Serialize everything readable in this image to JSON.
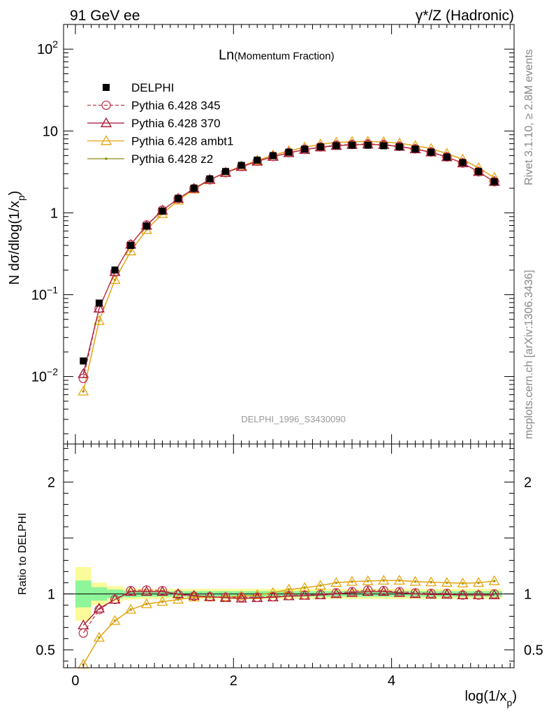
{
  "header": {
    "left": "91 GeV ee",
    "right_prefix": "γ*/Z",
    "right_suffix": "(Hadronic)"
  },
  "side_labels": {
    "rivet": "Rivet 3.1.10, ≥ 2.8M events",
    "mcplots": "mcplots.cern.ch [arXiv:1306.3436]"
  },
  "plot_title_main": "Ln",
  "plot_title_sub": "(Momentum Fraction)",
  "analysis_id": "DELPHI_1996_S3430090",
  "chart_data": [
    {
      "type": "scatter",
      "ylabel": "N dσ/dlog(1/x_p)",
      "ylabel_text": "N dσ/dlog(1/x",
      "ylabel_sub": "p",
      "ylabel_close": ")",
      "yscale": "log",
      "ylim": [
        0.0015,
        200
      ],
      "xlim": [
        -0.15,
        5.55
      ],
      "x": [
        0.1,
        0.3,
        0.5,
        0.7,
        0.9,
        1.1,
        1.3,
        1.5,
        1.7,
        1.9,
        2.1,
        2.3,
        2.5,
        2.7,
        2.9,
        3.1,
        3.3,
        3.5,
        3.7,
        3.9,
        4.1,
        4.3,
        4.5,
        4.7,
        4.9,
        5.1,
        5.3
      ],
      "y_tick_labels": [
        "10^-2",
        "10^-1",
        "1",
        "10",
        "10^2"
      ],
      "legend_position": "top-left",
      "series": [
        {
          "name": "DELPHI",
          "color": "#000000",
          "marker": "square",
          "values": [
            0.0155,
            0.079,
            0.2,
            0.4,
            0.69,
            1.05,
            1.5,
            2.0,
            2.6,
            3.2,
            3.8,
            4.4,
            5.0,
            5.5,
            6.0,
            6.4,
            6.6,
            6.7,
            6.7,
            6.6,
            6.4,
            6.0,
            5.5,
            4.8,
            4.1,
            3.2,
            2.4
          ]
        },
        {
          "name": "Pythia 6.428 345",
          "color": "#c0394f",
          "marker": "circle-open",
          "line": "dashed",
          "values": [
            0.0095,
            0.068,
            0.19,
            0.41,
            0.71,
            1.08,
            1.49,
            1.98,
            2.54,
            3.1,
            3.68,
            4.27,
            4.88,
            5.43,
            5.95,
            6.37,
            6.7,
            6.84,
            6.93,
            6.82,
            6.49,
            6.05,
            5.53,
            4.82,
            4.06,
            3.17,
            2.4
          ]
        },
        {
          "name": "Pythia 6.428 370",
          "color": "#a50f2d",
          "marker": "triangle-open",
          "line": "solid",
          "values": [
            0.0108,
            0.068,
            0.19,
            0.41,
            0.7,
            1.07,
            1.49,
            1.98,
            2.55,
            3.09,
            3.65,
            4.24,
            4.85,
            5.39,
            5.9,
            6.33,
            6.61,
            6.78,
            6.86,
            6.76,
            6.45,
            6.0,
            5.5,
            4.8,
            4.05,
            3.17,
            2.4
          ]
        },
        {
          "name": "Pythia 6.428 ambt1",
          "color": "#e8a510",
          "marker": "triangle-open",
          "line": "solid",
          "values": [
            0.0066,
            0.048,
            0.152,
            0.34,
            0.62,
            0.97,
            1.42,
            1.94,
            2.52,
            3.12,
            3.72,
            4.35,
            5.06,
            5.72,
            6.33,
            6.88,
            7.25,
            7.38,
            7.45,
            7.35,
            7.08,
            6.62,
            6.08,
            5.3,
            4.49,
            3.54,
            2.69
          ]
        },
        {
          "name": "Pythia 6.428 z2",
          "color": "#8c8c14",
          "marker": "dot",
          "line": "solid",
          "values": [
            0.0066,
            0.048,
            0.152,
            0.34,
            0.62,
            0.97,
            1.42,
            1.94,
            2.52,
            3.12,
            3.72,
            4.35,
            5.06,
            5.72,
            6.33,
            6.88,
            7.25,
            7.38,
            7.45,
            7.35,
            7.08,
            6.62,
            6.08,
            5.3,
            4.49,
            3.54,
            2.69
          ]
        }
      ]
    },
    {
      "type": "line",
      "ylabel": "Ratio to DELPHI",
      "xlabel": "log(1/x_p)",
      "xlabel_text": "log(1/x",
      "xlabel_sub": "p",
      "xlabel_close": ")",
      "ylim": [
        0.34,
        2.34
      ],
      "xlim": [
        -0.15,
        5.55
      ],
      "x_ticks": [
        0,
        2,
        4
      ],
      "y_ticks": [
        0.5,
        1,
        2
      ],
      "x": [
        0.1,
        0.3,
        0.5,
        0.7,
        0.9,
        1.1,
        1.3,
        1.5,
        1.7,
        1.9,
        2.1,
        2.3,
        2.5,
        2.7,
        2.9,
        3.1,
        3.3,
        3.5,
        3.7,
        3.9,
        4.1,
        4.3,
        4.5,
        4.7,
        4.9,
        5.1,
        5.3
      ],
      "bin_edges": [
        0.0,
        0.2,
        0.4,
        0.6,
        0.8,
        1.0,
        1.2,
        1.4,
        1.6,
        1.8,
        2.0,
        2.2,
        2.4,
        2.6,
        2.8,
        3.0,
        3.2,
        3.4,
        3.6,
        3.8,
        4.0,
        4.2,
        4.4,
        4.6,
        4.8,
        5.0,
        5.2,
        5.4
      ],
      "band_inner": [
        0.12,
        0.06,
        0.04,
        0.03,
        0.025,
        0.025,
        0.025,
        0.025,
        0.025,
        0.025,
        0.025,
        0.025,
        0.025,
        0.025,
        0.025,
        0.025,
        0.025,
        0.025,
        0.025,
        0.025,
        0.025,
        0.025,
        0.025,
        0.025,
        0.025,
        0.025,
        0.025
      ],
      "band_outer": [
        0.24,
        0.1,
        0.07,
        0.05,
        0.045,
        0.045,
        0.045,
        0.045,
        0.045,
        0.045,
        0.045,
        0.045,
        0.045,
        0.045,
        0.045,
        0.045,
        0.045,
        0.045,
        0.045,
        0.045,
        0.045,
        0.045,
        0.045,
        0.045,
        0.045,
        0.045,
        0.045
      ],
      "band_colors": {
        "inner": "#8ef59a",
        "outer": "#fbfb9a"
      },
      "series": [
        {
          "name": "Pythia 6.428 345",
          "color": "#c0394f",
          "marker": "circle-open",
          "line": "dashed",
          "values": [
            0.65,
            0.86,
            0.95,
            1.03,
            1.035,
            1.03,
            0.995,
            0.98,
            0.975,
            0.97,
            0.97,
            0.97,
            0.975,
            0.985,
            0.99,
            0.995,
            1.01,
            1.02,
            1.035,
            1.03,
            1.02,
            1.01,
            1.005,
            1.005,
            0.99,
            0.99,
            1.0
          ]
        },
        {
          "name": "Pythia 6.428 370",
          "color": "#a50f2d",
          "marker": "triangle-open",
          "line": "solid",
          "values": [
            0.72,
            0.87,
            0.95,
            1.02,
            1.02,
            1.02,
            1.0,
            0.985,
            0.975,
            0.965,
            0.96,
            0.965,
            0.97,
            0.98,
            0.985,
            0.99,
            1.0,
            1.01,
            1.02,
            1.02,
            1.01,
            1.0,
            0.995,
            0.995,
            0.99,
            0.99,
            0.99
          ]
        },
        {
          "name": "Pythia 6.428 ambt1",
          "color": "#e8a510",
          "marker": "triangle-open",
          "line": "solid",
          "values": [
            0.37,
            0.61,
            0.76,
            0.86,
            0.91,
            0.93,
            0.95,
            0.97,
            0.97,
            0.975,
            0.98,
            0.99,
            1.01,
            1.04,
            1.055,
            1.075,
            1.1,
            1.11,
            1.115,
            1.12,
            1.12,
            1.11,
            1.105,
            1.1,
            1.095,
            1.1,
            1.115
          ]
        },
        {
          "name": "Pythia 6.428 z2",
          "color": "#8c8c14",
          "marker": "dot",
          "line": "solid",
          "values": [
            0.37,
            0.61,
            0.76,
            0.86,
            0.91,
            0.93,
            0.95,
            0.97,
            0.97,
            0.975,
            0.98,
            0.99,
            1.01,
            1.04,
            1.055,
            1.075,
            1.1,
            1.11,
            1.115,
            1.12,
            1.12,
            1.11,
            1.105,
            1.1,
            1.095,
            1.1,
            1.115
          ]
        }
      ]
    }
  ]
}
